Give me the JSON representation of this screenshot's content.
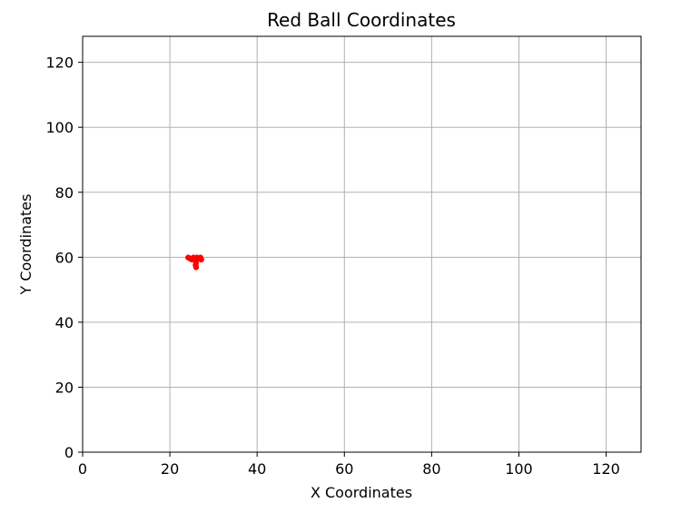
{
  "chart_data": {
    "type": "scatter",
    "title": "Red Ball Coordinates",
    "xlabel": "X Coordinates",
    "ylabel": "Y Coordinates",
    "xlim": [
      0,
      128
    ],
    "ylim": [
      0,
      128
    ],
    "xticks": [
      0,
      20,
      40,
      60,
      80,
      100,
      120
    ],
    "yticks": [
      0,
      20,
      40,
      60,
      80,
      100,
      120
    ],
    "xtick_labels": [
      "0",
      "20",
      "40",
      "60",
      "80",
      "100",
      "120"
    ],
    "ytick_labels": [
      "0",
      "20",
      "40",
      "60",
      "80",
      "100",
      "120"
    ],
    "grid": true,
    "legend": "none",
    "marker_color": "#ff0000",
    "grid_color": "#b0b0b0",
    "series": [
      {
        "points": [
          {
            "x": 24.2,
            "y": 59.9
          },
          {
            "x": 24.6,
            "y": 59.6
          },
          {
            "x": 25.0,
            "y": 59.3
          },
          {
            "x": 25.4,
            "y": 59.9
          },
          {
            "x": 25.8,
            "y": 59.3
          },
          {
            "x": 26.2,
            "y": 59.9
          },
          {
            "x": 26.6,
            "y": 59.6
          },
          {
            "x": 27.0,
            "y": 59.9
          },
          {
            "x": 27.2,
            "y": 59.3
          },
          {
            "x": 26.0,
            "y": 58.4
          },
          {
            "x": 25.9,
            "y": 57.6
          },
          {
            "x": 26.0,
            "y": 56.9
          }
        ]
      }
    ]
  }
}
